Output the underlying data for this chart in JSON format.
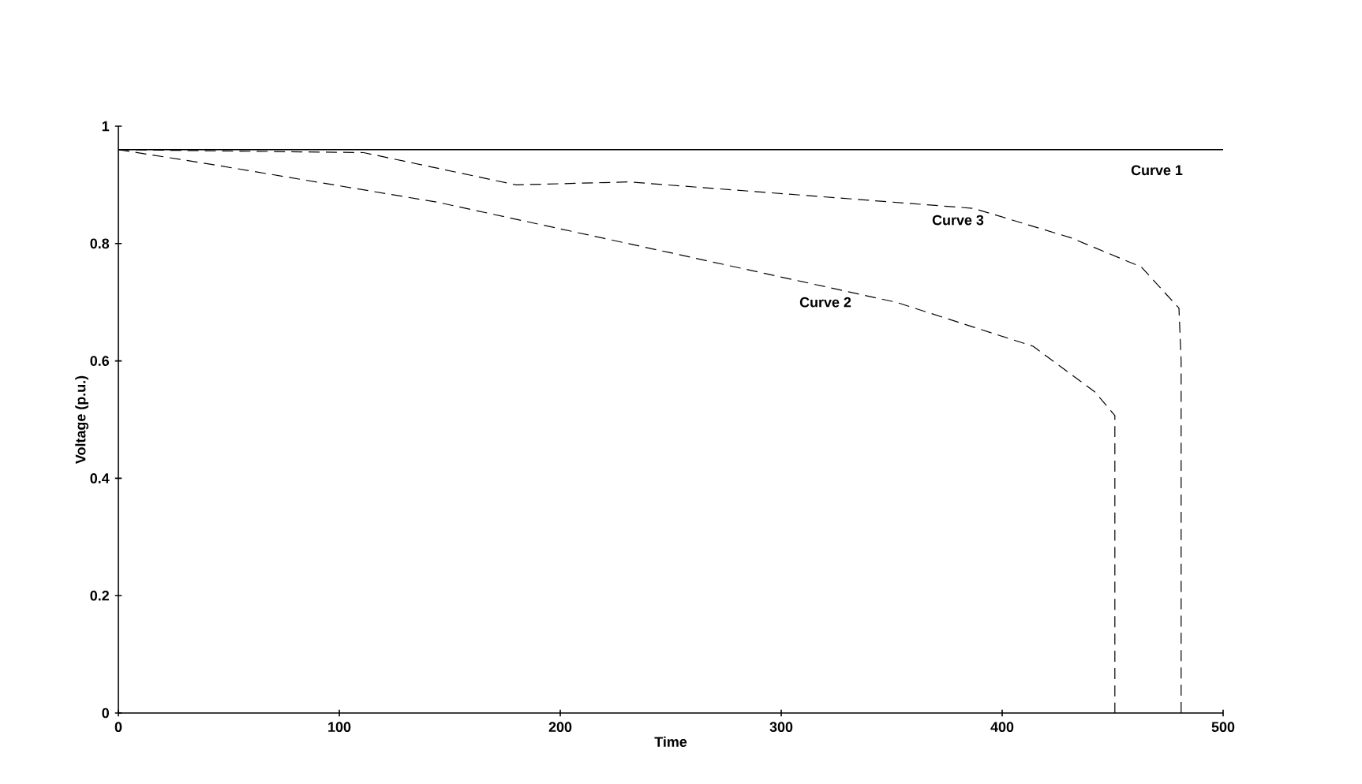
{
  "chart_data": {
    "type": "line",
    "xlabel": "Time",
    "ylabel": "Voltage (p.u.)",
    "xlim": [
      0,
      500
    ],
    "ylim": [
      0,
      1
    ],
    "xticks": [
      0,
      100,
      200,
      300,
      400,
      500
    ],
    "yticks": [
      0,
      0.2,
      0.4,
      0.6,
      0.8,
      1
    ],
    "marker": "none",
    "series": [
      {
        "color": "#000000",
        "line_style": "solid",
        "x": [
          0,
          500
        ],
        "values": [
          0.96,
          0.96
        ]
      },
      {
        "color": "#000000",
        "line_style": "dashed",
        "x": [
          0,
          42,
          145,
          249,
          352,
          414,
          442,
          451,
          451
        ],
        "values": [
          0.96,
          0.935,
          0.87,
          0.785,
          0.7,
          0.625,
          0.547,
          0.507,
          0
        ]
      },
      {
        "color": "#000000",
        "line_style": "dashed",
        "x": [
          0,
          111,
          180,
          231,
          318,
          387,
          431,
          463,
          480,
          481,
          481
        ],
        "values": [
          0.96,
          0.955,
          0.9,
          0.905,
          0.88,
          0.86,
          0.81,
          0.76,
          0.69,
          0.6,
          0
        ]
      }
    ],
    "annotations": [
      "Curve 1",
      "Curve 3",
      "Curve 2"
    ]
  }
}
